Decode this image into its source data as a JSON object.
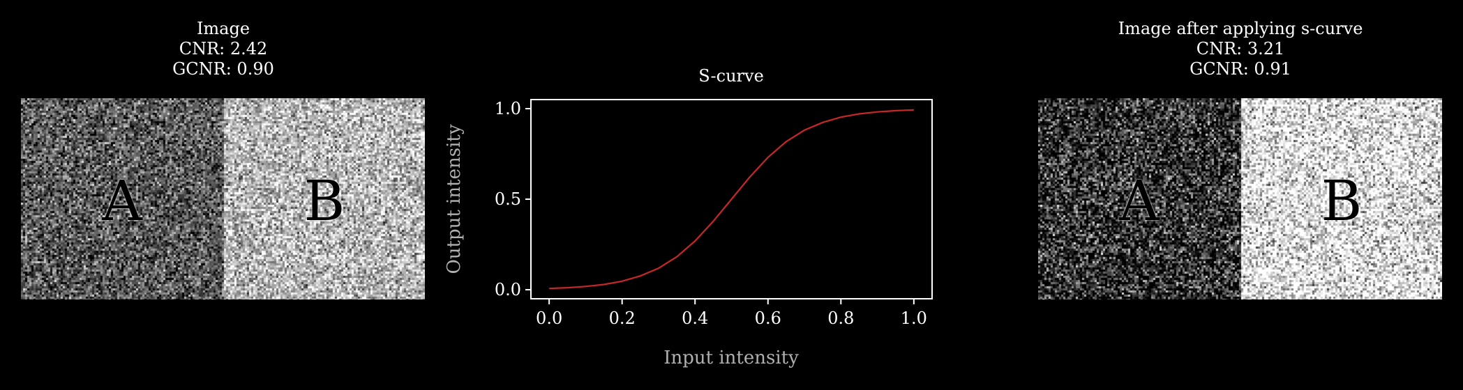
{
  "panels": {
    "left": {
      "title": "Image\nCNR: 2.42\nGCNR: 0.90",
      "label_a": "A",
      "label_b": "B",
      "region_a_mean": 0.35,
      "region_b_mean": 0.72
    },
    "right": {
      "title": "Image after applying s-curve\nCNR: 3.21\nGCNR: 0.91",
      "label_a": "A",
      "label_b": "B",
      "region_a_mean": 0.18,
      "region_b_mean": 0.9
    }
  },
  "chart_data": {
    "type": "line",
    "title": "S-curve",
    "xlabel": "Input intensity",
    "ylabel": "Output intensity",
    "xlim": [
      -0.05,
      1.05
    ],
    "ylim": [
      -0.05,
      1.05
    ],
    "xticks": [
      0.0,
      0.2,
      0.4,
      0.6,
      0.8,
      1.0
    ],
    "xtick_labels": [
      "0.0",
      "0.2",
      "0.4",
      "0.6",
      "0.8",
      "1.0"
    ],
    "yticks": [
      0.0,
      0.5,
      1.0
    ],
    "ytick_labels": [
      "0.0",
      "0.5",
      "1.0"
    ],
    "grid": false,
    "series": [
      {
        "color": "#c62828",
        "x": [
          0.0,
          0.05,
          0.1,
          0.15,
          0.2,
          0.25,
          0.3,
          0.35,
          0.4,
          0.45,
          0.5,
          0.55,
          0.6,
          0.65,
          0.7,
          0.75,
          0.8,
          0.85,
          0.9,
          0.95,
          1.0
        ],
        "y": [
          0.007,
          0.011,
          0.018,
          0.029,
          0.047,
          0.076,
          0.119,
          0.182,
          0.269,
          0.378,
          0.5,
          0.622,
          0.731,
          0.818,
          0.881,
          0.924,
          0.953,
          0.971,
          0.982,
          0.989,
          0.993
        ]
      }
    ]
  },
  "colors": {
    "background": "#000000",
    "axes": "#ffffff",
    "axis_label": "#b0b0b0",
    "curve": "#c62828"
  }
}
